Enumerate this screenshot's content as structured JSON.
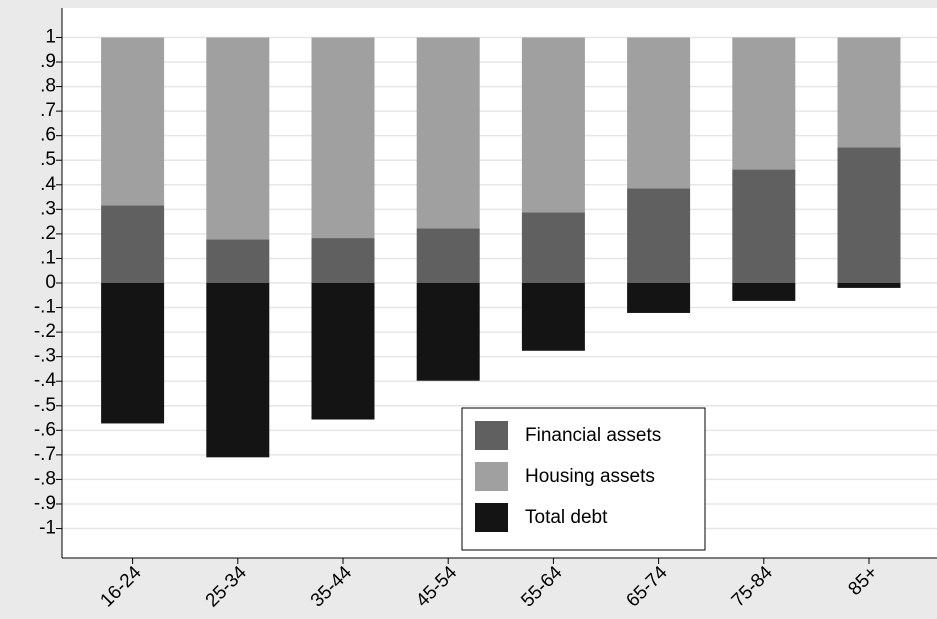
{
  "chart_data": {
    "type": "stacked-bar",
    "categories": [
      "16-24",
      "25-34",
      "35-44",
      "45-54",
      "55-64",
      "65-74",
      "75-84",
      "85+"
    ],
    "series": [
      {
        "name": "Financial assets",
        "color": "#606060",
        "values": [
          0.316,
          0.178,
          0.183,
          0.223,
          0.288,
          0.385,
          0.462,
          0.552
        ]
      },
      {
        "name": "Housing assets",
        "color": "#a0a0a0",
        "values": [
          0.684,
          0.822,
          0.817,
          0.777,
          0.712,
          0.615,
          0.538,
          0.448
        ]
      },
      {
        "name": "Total debt",
        "color": "#141414",
        "values": [
          -0.572,
          -0.71,
          -0.556,
          -0.398,
          -0.276,
          -0.122,
          -0.073,
          -0.02
        ]
      }
    ],
    "ylim": [
      -1.12,
      1.12
    ],
    "yticks": [
      1,
      {
        "value": 0.9,
        "label": ".9"
      },
      {
        "value": 0.8,
        "label": ".8"
      },
      {
        "value": 0.7,
        "label": ".7"
      },
      {
        "value": 0.6,
        "label": ".6"
      },
      {
        "value": 0.5,
        "label": ".5"
      },
      {
        "value": 0.4,
        "label": ".4"
      },
      {
        "value": 0.3,
        "label": ".3"
      },
      {
        "value": 0.2,
        "label": ".2"
      },
      {
        "value": 0.1,
        "label": ".1"
      },
      0,
      {
        "value": -0.1,
        "label": "-.1"
      },
      {
        "value": -0.2,
        "label": "-.2"
      },
      {
        "value": -0.3,
        "label": "-.3"
      },
      {
        "value": -0.4,
        "label": "-.4"
      },
      {
        "value": -0.5,
        "label": "-.5"
      },
      {
        "value": -0.6,
        "label": "-.6"
      },
      {
        "value": -0.7,
        "label": "-.7"
      },
      {
        "value": -0.8,
        "label": "-.8"
      },
      {
        "value": -0.9,
        "label": "-.9"
      },
      -1
    ],
    "grid": true,
    "legend_position": "bottom"
  }
}
